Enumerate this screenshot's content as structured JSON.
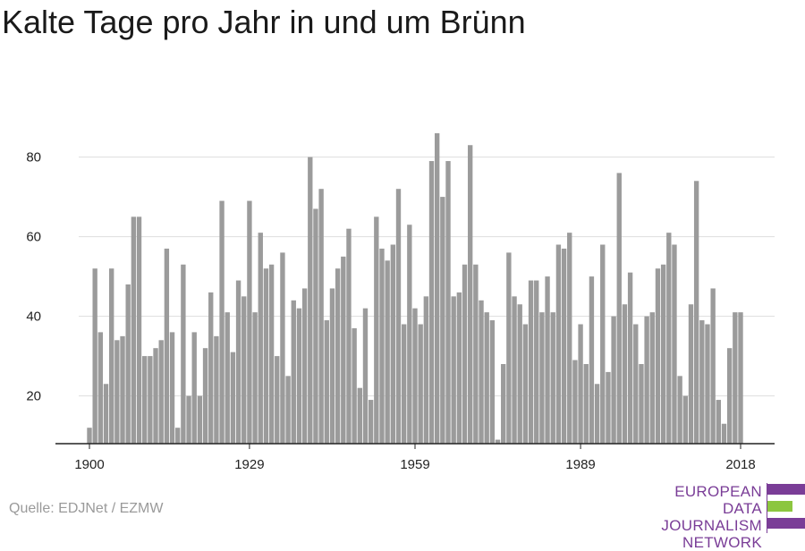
{
  "title": "Kalte Tage pro Jahr in und um Brünn",
  "source": "Quelle: EDJNet / EZMW",
  "logo": {
    "lines": [
      "EUROPEAN",
      "DATA JOURNALISM",
      "NETWORK"
    ],
    "colors": {
      "purple": "#7a3d97",
      "green": "#8cc63f"
    }
  },
  "colors": {
    "bar": "#9b9b9b",
    "grid": "#dddddd",
    "axis": "#222222"
  },
  "chart_data": {
    "type": "bar",
    "x_start": 1900,
    "x_end": 2018,
    "xticks": [
      1900,
      1929,
      1959,
      1989,
      2018
    ],
    "yticks": [
      20,
      40,
      60,
      80
    ],
    "ylim": [
      8,
      88
    ],
    "grid": true,
    "values": [
      12,
      52,
      36,
      23,
      52,
      34,
      35,
      48,
      65,
      65,
      30,
      30,
      32,
      34,
      57,
      36,
      12,
      53,
      20,
      36,
      20,
      32,
      46,
      35,
      69,
      41,
      31,
      49,
      45,
      69,
      41,
      61,
      52,
      53,
      30,
      56,
      25,
      44,
      42,
      47,
      80,
      67,
      72,
      39,
      47,
      52,
      55,
      62,
      37,
      22,
      42,
      19,
      65,
      57,
      54,
      58,
      72,
      38,
      63,
      42,
      38,
      45,
      79,
      86,
      70,
      79,
      45,
      46,
      53,
      83,
      53,
      44,
      41,
      39,
      9,
      28,
      56,
      45,
      43,
      38,
      49,
      49,
      41,
      50,
      41,
      58,
      57,
      61,
      29,
      38,
      28,
      50,
      23,
      58,
      26,
      40,
      76,
      43,
      51,
      38,
      28,
      40,
      41,
      52,
      53,
      61,
      58,
      25,
      20,
      43,
      74,
      39,
      38,
      47,
      19,
      13,
      32,
      41,
      41
    ]
  }
}
